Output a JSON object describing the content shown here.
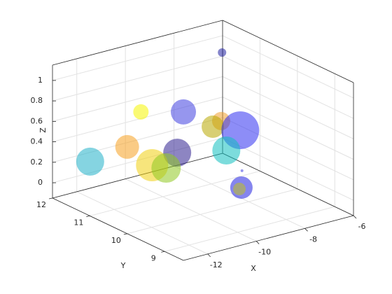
{
  "chart_data": {
    "type": "scatter3d",
    "x_label": "X",
    "y_label": "Y",
    "z_label": "Z",
    "xlim": [
      -13,
      -6
    ],
    "ylim": [
      8.5,
      12
    ],
    "zlim": [
      -0.15,
      1.15
    ],
    "xticks": [
      -12,
      -10,
      -8,
      -6
    ],
    "yticks": [
      9,
      10,
      11,
      12
    ],
    "zticks": [
      0,
      0.2,
      0.4,
      0.6,
      0.8,
      1
    ],
    "grid": true,
    "opacity": 0.55,
    "x": [
      -6.1,
      -10.7,
      -9.86,
      -7.66,
      -8.48,
      -8.52,
      -11.02,
      -9.73,
      -7.74,
      -12.25,
      -10.24,
      -9.74,
      -7.88,
      -8.55,
      -8.51
    ],
    "y": [
      11.95,
      11.13,
      10.54,
      10.96,
      10.65,
      9.89,
      11.29,
      10.79,
      10.77,
      11.48,
      11.13,
      11.08,
      10.26,
      9.84,
      9.92
    ],
    "z": [
      0.85,
      0.7,
      0.75,
      0.45,
      0.5,
      0.6,
      0.35,
      0.3,
      0.2,
      0.25,
      0.15,
      0.1,
      0.1,
      0.05,
      0.02
    ],
    "sizes": [
      144,
      484,
      1296,
      676,
      1024,
      2916,
      1156,
      1600,
      1600,
      1600,
      2116,
      1764,
      16,
      1024,
      324
    ],
    "colors": [
      "#2020a0",
      "#f5f500",
      "#4040e0",
      "#f0a030",
      "#b8a800",
      "#3030f0",
      "#f5a020",
      "#302090",
      "#10c0c0",
      "#20b0c8",
      "#f0d010",
      "#90c820",
      "#4040e0",
      "#2020e0",
      "#c0c020"
    ]
  }
}
